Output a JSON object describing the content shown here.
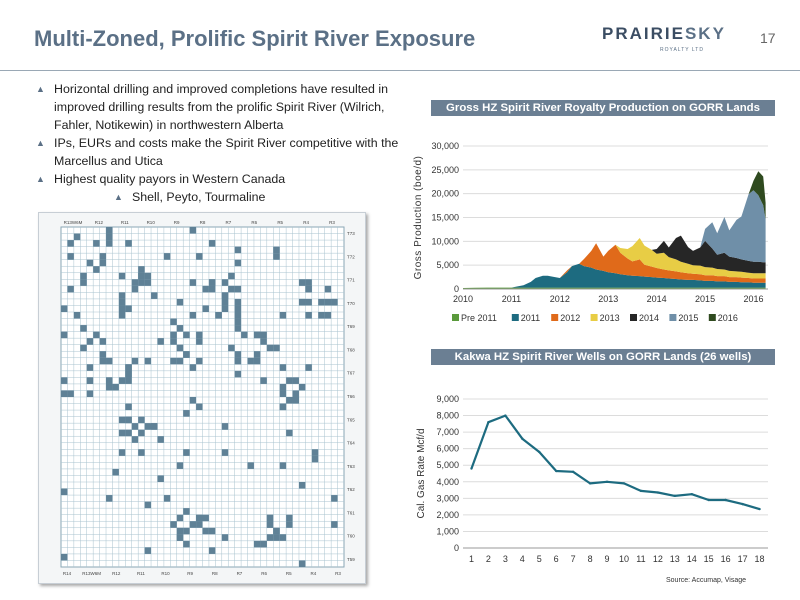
{
  "slide": {
    "title": "Multi-Zoned, Prolific Spirit River Exposure",
    "page_number": "17",
    "logo": {
      "brand_main": "PRAIRIE",
      "brand_accent": "SKY",
      "sub": "ROYALTY LTD"
    },
    "source": "Source: Accumap, Visage"
  },
  "bullets": [
    "Horizontal drilling and improved completions have resulted in improved drilling results from the prolific Spirit River (Wilrich, Fahler, Notikewin) in northwestern Alberta",
    "IPs, EURs and costs make the Spirit River competitive with the Marcellus and Utica",
    "Highest quality payors in Western Canada"
  ],
  "sub_bullets": [
    "Shell, Peyto, Tourmaline"
  ],
  "map": {
    "range_labels": [
      "R13W6M",
      "R12",
      "R11",
      "R10",
      "R9",
      "R8",
      "R7",
      "R6",
      "R5",
      "R4",
      "R3"
    ],
    "bottom_labels": [
      "R14",
      "R13W6M",
      "R12",
      "R11",
      "R10",
      "R9",
      "R8",
      "R7",
      "R6",
      "R5",
      "R4",
      "R3"
    ],
    "township_labels": [
      "T73",
      "T72",
      "T71",
      "T70",
      "T69",
      "T68",
      "T67",
      "T66",
      "T65",
      "T64",
      "T63",
      "T62",
      "T61",
      "T60",
      "T59"
    ],
    "colors": {
      "land": "#5f8196",
      "grid": "#a9c3cf",
      "background": "#f4f6f7"
    }
  },
  "chart_data": [
    {
      "type": "area",
      "stacked": true,
      "title": "Gross HZ Spirit River Royalty Production on GORR Lands",
      "ylabel": "Gross Production (boe/d)",
      "xlabel": "",
      "xlim": [
        2010,
        2016.3
      ],
      "ylim": [
        0,
        30000
      ],
      "x_ticks": [
        "2010",
        "2011",
        "2012",
        "2013",
        "2014",
        "2015",
        "2016"
      ],
      "y_ticks": [
        "0",
        "5,000",
        "10,000",
        "15,000",
        "20,000",
        "25,000",
        "30,000"
      ],
      "legend_position": "bottom",
      "x": [
        2010.0,
        2010.25,
        2010.5,
        2010.75,
        2011.0,
        2011.1,
        2011.25,
        2011.4,
        2011.5,
        2011.65,
        2011.75,
        2011.9,
        2012.0,
        2012.15,
        2012.25,
        2012.4,
        2012.5,
        2012.65,
        2012.75,
        2012.9,
        2013.0,
        2013.15,
        2013.25,
        2013.4,
        2013.5,
        2013.65,
        2013.75,
        2013.9,
        2014.0,
        2014.15,
        2014.25,
        2014.4,
        2014.5,
        2014.65,
        2014.75,
        2014.9,
        2015.0,
        2015.15,
        2015.25,
        2015.4,
        2015.5,
        2015.65,
        2015.75,
        2015.9,
        2016.0,
        2016.1,
        2016.2,
        2016.25
      ],
      "series": [
        {
          "name": "Pre 2011",
          "color": "#5a9a3c",
          "values": [
            200,
            250,
            300,
            300,
            300,
            300,
            300,
            300,
            300,
            300,
            300,
            300,
            300,
            300,
            300,
            300,
            300,
            300,
            300,
            300,
            300,
            300,
            300,
            300,
            300,
            300,
            300,
            300,
            300,
            300,
            300,
            300,
            300,
            300,
            300,
            300,
            300,
            300,
            300,
            300,
            300,
            300,
            300,
            300,
            300,
            300,
            300,
            300
          ]
        },
        {
          "name": "2011",
          "color": "#1d6b80",
          "values": [
            0,
            0,
            0,
            0,
            0,
            200,
            500,
            1200,
            2000,
            2500,
            2500,
            2200,
            2000,
            3200,
            4500,
            5000,
            4500,
            4200,
            3800,
            3500,
            3200,
            3000,
            2800,
            2600,
            2500,
            2400,
            2300,
            2200,
            2100,
            2000,
            1900,
            1800,
            1700,
            1600,
            1600,
            1500,
            1400,
            1400,
            1300,
            1300,
            1200,
            1200,
            1100,
            1100,
            1000,
            1000,
            1000,
            1000
          ]
        },
        {
          "name": "2012",
          "color": "#e06a1a",
          "values": [
            0,
            0,
            0,
            0,
            0,
            0,
            0,
            0,
            0,
            0,
            0,
            0,
            0,
            400,
            0,
            0,
            1500,
            3500,
            5500,
            3000,
            4500,
            6000,
            4500,
            3500,
            3000,
            3500,
            2500,
            2200,
            2000,
            1800,
            1700,
            1600,
            1500,
            1400,
            1300,
            1300,
            1200,
            1200,
            1100,
            1100,
            1000,
            1000,
            1000,
            900,
            900,
            900,
            900,
            900
          ]
        },
        {
          "name": "2013",
          "color": "#e8cd45",
          "values": [
            0,
            0,
            0,
            0,
            0,
            0,
            0,
            0,
            0,
            0,
            0,
            0,
            0,
            0,
            0,
            0,
            0,
            0,
            0,
            0,
            0,
            0,
            1000,
            2000,
            3200,
            4500,
            4000,
            3500,
            3000,
            3500,
            2800,
            2500,
            2200,
            2000,
            1800,
            1800,
            1700,
            1600,
            1500,
            1400,
            1300,
            1200,
            1200,
            1100,
            1100,
            1100,
            1100,
            1100
          ]
        },
        {
          "name": "2014",
          "color": "#262626",
          "values": [
            0,
            0,
            0,
            0,
            0,
            0,
            0,
            0,
            0,
            0,
            0,
            0,
            0,
            0,
            0,
            0,
            0,
            0,
            0,
            0,
            0,
            0,
            0,
            0,
            0,
            0,
            0,
            0,
            1000,
            2500,
            2000,
            4500,
            5500,
            3500,
            3000,
            3800,
            5500,
            4000,
            3000,
            3500,
            3000,
            2800,
            2600,
            2500,
            2400,
            2400,
            2300,
            2300
          ]
        },
        {
          "name": "2015",
          "color": "#6f8fa8",
          "values": [
            0,
            0,
            0,
            0,
            0,
            0,
            0,
            0,
            0,
            0,
            0,
            0,
            0,
            0,
            0,
            0,
            0,
            0,
            0,
            0,
            0,
            0,
            0,
            0,
            0,
            0,
            0,
            0,
            0,
            0,
            0,
            0,
            0,
            0,
            0,
            0,
            2500,
            5500,
            4500,
            7500,
            5500,
            8000,
            9000,
            14000,
            15000,
            14000,
            12000,
            9000
          ]
        },
        {
          "name": "2016",
          "color": "#2f4a1f",
          "values": [
            0,
            0,
            0,
            0,
            0,
            0,
            0,
            0,
            0,
            0,
            0,
            0,
            0,
            0,
            0,
            0,
            0,
            0,
            0,
            0,
            0,
            0,
            0,
            0,
            0,
            0,
            0,
            0,
            0,
            0,
            0,
            0,
            0,
            0,
            0,
            0,
            0,
            0,
            0,
            0,
            0,
            0,
            0,
            0,
            2000,
            5000,
            6000,
            3500
          ]
        }
      ]
    },
    {
      "type": "line",
      "title": "Kakwa HZ Spirit River Wells on GORR Lands (26 wells)",
      "ylabel": "Cal. Gas Rate Mcf/d",
      "xlabel": "",
      "ylim": [
        0,
        9000
      ],
      "y_ticks": [
        "0",
        "1,000",
        "2,000",
        "3,000",
        "4,000",
        "5,000",
        "6,000",
        "7,000",
        "8,000",
        "9,000"
      ],
      "x": [
        1,
        2,
        3,
        4,
        5,
        6,
        7,
        8,
        9,
        10,
        11,
        12,
        13,
        14,
        15,
        16,
        17,
        18
      ],
      "series": [
        {
          "color": "#1d6b80",
          "values": [
            4800,
            7600,
            8000,
            6600,
            5800,
            4650,
            4600,
            3900,
            4000,
            3900,
            3450,
            3350,
            3150,
            3250,
            2900,
            2900,
            2650,
            2350
          ]
        }
      ]
    }
  ]
}
